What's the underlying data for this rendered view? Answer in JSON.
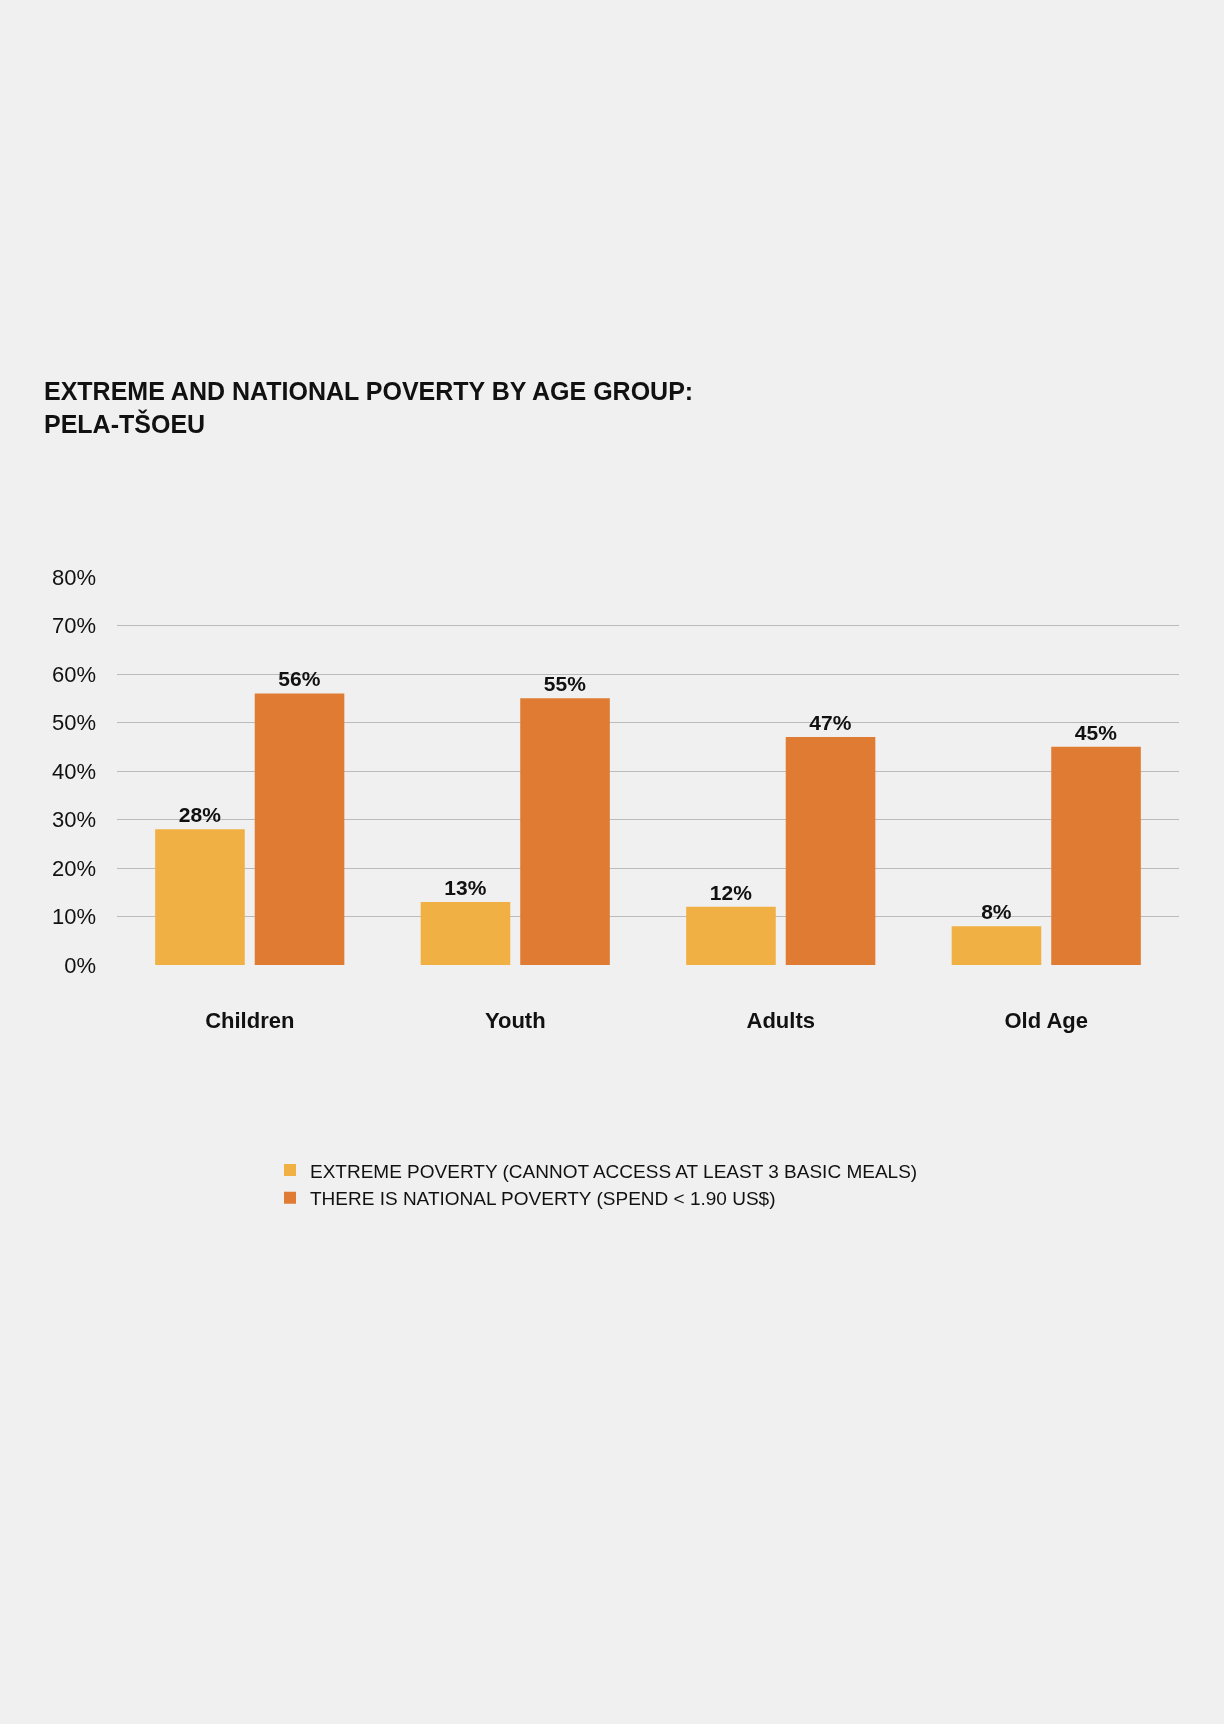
{
  "chart_data": {
    "type": "bar",
    "title": "EXTREME AND NATIONAL POVERTY BY AGE GROUP:\nPELA-TŠOEU",
    "categories": [
      "Children",
      "Youth",
      "Adults",
      "Old Age"
    ],
    "series": [
      {
        "name": "EXTREME POVERTY (CANNOT ACCESS AT LEAST 3 BASIC MEALS)",
        "color": "#f0b043",
        "values": [
          28,
          13,
          12,
          8
        ],
        "value_labels": [
          "28%",
          "13%",
          "12%",
          "8%"
        ]
      },
      {
        "name": "THERE IS NATIONAL POVERTY (SPEND < 1.90 US$)",
        "color": "#e07b33",
        "values": [
          56,
          55,
          47,
          45
        ],
        "value_labels": [
          "56%",
          "55%",
          "47%",
          "45%"
        ]
      }
    ],
    "ylim": [
      0,
      80
    ],
    "yticks": [
      {
        "value": 0,
        "label": "0%"
      },
      {
        "value": 10,
        "label": "10%"
      },
      {
        "value": 20,
        "label": "20%"
      },
      {
        "value": 30,
        "label": "30%"
      },
      {
        "value": 40,
        "label": "40%"
      },
      {
        "value": 50,
        "label": "50%"
      },
      {
        "value": 60,
        "label": "60%"
      },
      {
        "value": 70,
        "label": "70%"
      },
      {
        "value": 80,
        "label": "80%"
      }
    ],
    "grid": "y",
    "legend": "bottom"
  }
}
